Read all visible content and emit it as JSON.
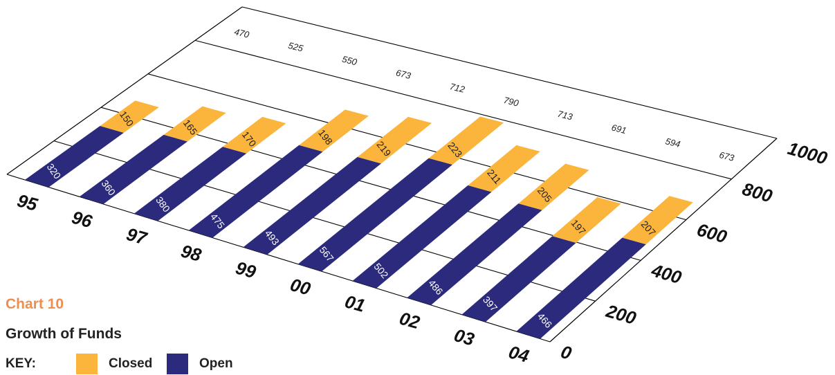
{
  "chart_data": {
    "type": "bar",
    "stacked": true,
    "categories": [
      "95",
      "96",
      "97",
      "98",
      "99",
      "00",
      "01",
      "02",
      "03",
      "04"
    ],
    "series": [
      {
        "name": "Open",
        "color": "#2b2a7c",
        "values": [
          320,
          360,
          380,
          475,
          493,
          567,
          502,
          486,
          397,
          466
        ]
      },
      {
        "name": "Closed",
        "color": "#fbb53d",
        "values": [
          150,
          165,
          170,
          198,
          219,
          223,
          211,
          205,
          197,
          207
        ]
      }
    ],
    "totals": [
      "470",
      "525",
      "550",
      "673",
      "712",
      "790",
      "713",
      "691",
      "594",
      "673"
    ],
    "y_ticks": [
      "0",
      "200",
      "400",
      "600",
      "800",
      "1000"
    ],
    "ylim": [
      0,
      1000
    ],
    "grid": true
  },
  "caption": {
    "label": "Chart 10",
    "title": "Growth of Funds"
  },
  "legend": {
    "key_label": "KEY:",
    "items": [
      {
        "label": "Closed",
        "color": "#fbb53d"
      },
      {
        "label": "Open",
        "color": "#2b2a7c"
      }
    ]
  }
}
